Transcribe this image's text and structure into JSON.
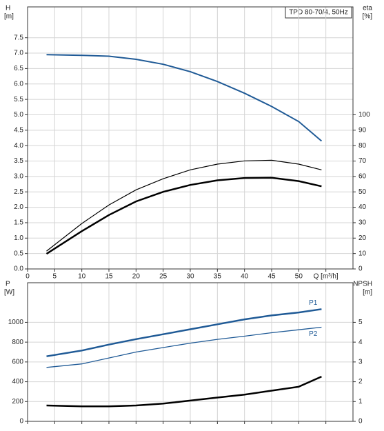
{
  "chart_data": [
    {
      "type": "line",
      "title": "TPD 80-70/4, 50Hz",
      "ylabel": "H",
      "yunit": "[m]",
      "y2label": "eta",
      "y2unit": "[%]",
      "xlim": [
        0,
        60
      ],
      "xticks": [
        0,
        5,
        10,
        15,
        20,
        25,
        30,
        35,
        40,
        45,
        50,
        {
          "value": 55,
          "label": "Q [m³/h]"
        }
      ],
      "ylim": [
        0,
        8.5
      ],
      "yticks": [
        {
          "value": 0,
          "label": "0.0"
        },
        0.5,
        {
          "value": 1,
          "label": "1.0"
        },
        1.5,
        {
          "value": 2,
          "label": "2.0"
        },
        2.5,
        {
          "value": 3,
          "label": "3.0"
        },
        3.5,
        {
          "value": 4,
          "label": "4.0"
        },
        4.5,
        {
          "value": 5,
          "label": "5.0"
        },
        5.5,
        {
          "value": 6,
          "label": "6.0"
        },
        6.5,
        {
          "value": 7,
          "label": "7.0"
        },
        7.5
      ],
      "y2lim": [
        0,
        170
      ],
      "y2ticks": [
        0,
        10,
        20,
        30,
        40,
        50,
        60,
        70,
        80,
        90,
        100
      ],
      "grid": true,
      "x": [
        3.5,
        10,
        15,
        20,
        25,
        30,
        35,
        40,
        45,
        50,
        54.2
      ],
      "series": [
        {
          "color": "#1f5a96",
          "linewidth": 2,
          "values": [
            6.95,
            6.93,
            6.9,
            6.8,
            6.64,
            6.4,
            6.08,
            5.7,
            5.27,
            4.78,
            4.15
          ]
        },
        {
          "color": "#000000",
          "linewidth": 2.5,
          "axis": "y2",
          "values": [
            9.8,
            24.5,
            35,
            43.8,
            50,
            54.5,
            57.5,
            59,
            59.2,
            57,
            53.6
          ]
        },
        {
          "color": "#000000",
          "linewidth": 1.2,
          "axis": "y2",
          "values": [
            11.6,
            29.5,
            41.5,
            51.3,
            58.5,
            64.3,
            68,
            70.1,
            70.5,
            68,
            64.3
          ]
        }
      ]
    },
    {
      "type": "line",
      "ylabel": "P",
      "yunit": "[W]",
      "y2label": "NPSH",
      "y2unit": "[m]",
      "xlim": [
        0,
        60
      ],
      "xticks": [
        0,
        5,
        10,
        15,
        20,
        25,
        30,
        35,
        40,
        45,
        50,
        55
      ],
      "ylim": [
        0,
        1400
      ],
      "yticks": [
        0,
        200,
        400,
        600,
        800,
        1000
      ],
      "y2lim": [
        0,
        7
      ],
      "y2ticks": [
        0,
        1,
        2,
        3,
        4,
        5
      ],
      "grid": true,
      "x": [
        3.5,
        10,
        15,
        20,
        25,
        30,
        35,
        40,
        45,
        50,
        54.2
      ],
      "series": [
        {
          "name": "P1",
          "color": "#1f5a96",
          "linewidth": 2.5,
          "values": [
            657,
            715,
            775,
            830,
            880,
            930,
            980,
            1030,
            1070,
            1100,
            1133
          ]
        },
        {
          "name": "P2",
          "color": "#1f5a96",
          "linewidth": 1.3,
          "values": [
            545,
            580,
            640,
            700,
            745,
            790,
            828,
            860,
            895,
            925,
            951
          ]
        },
        {
          "color": "#000000",
          "linewidth": 2.5,
          "axis": "y2",
          "values": [
            0.8,
            0.76,
            0.76,
            0.8,
            0.9,
            1.05,
            1.2,
            1.35,
            1.55,
            1.75,
            2.26
          ]
        }
      ]
    }
  ]
}
